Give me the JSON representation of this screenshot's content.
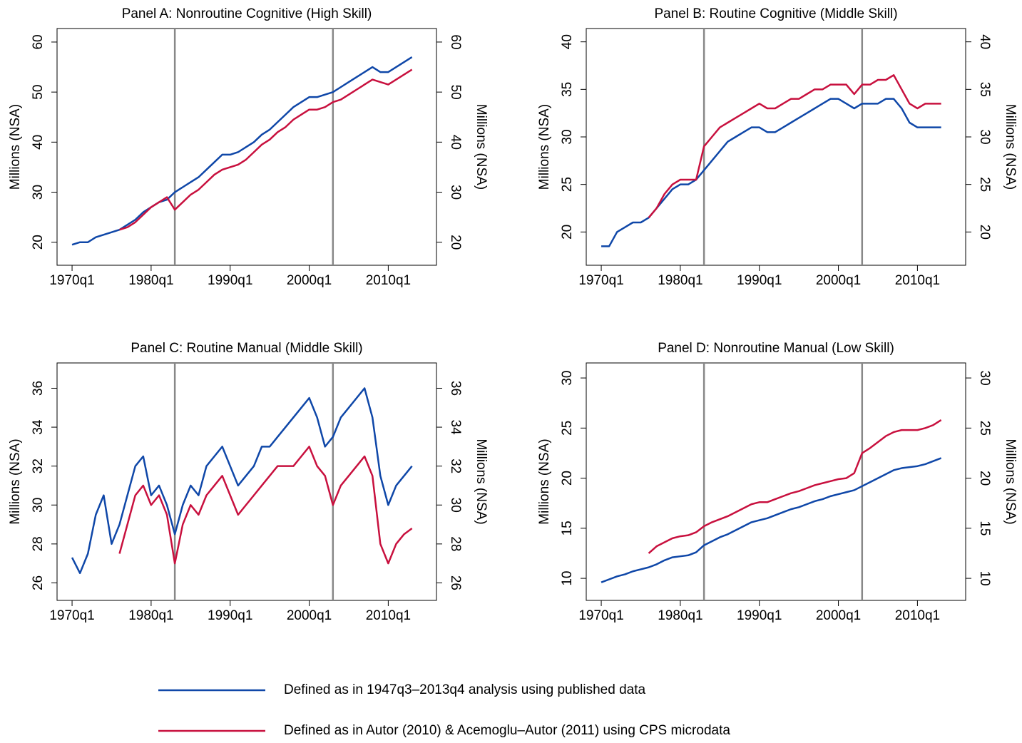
{
  "chart_data": [
    {
      "type": "line",
      "title": "Panel A: Nonroutine Cognitive (High Skill)",
      "ylabel": "Millions (NSA)",
      "y2label": "Millions (NSA)",
      "x": [
        1970,
        1971,
        1972,
        1973,
        1974,
        1975,
        1976,
        1977,
        1978,
        1979,
        1980,
        1981,
        1982,
        1983,
        1984,
        1985,
        1986,
        1987,
        1988,
        1989,
        1990,
        1991,
        1992,
        1993,
        1994,
        1995,
        1996,
        1997,
        1998,
        1999,
        2000,
        2001,
        2002,
        2003,
        2004,
        2005,
        2006,
        2007,
        2008,
        2009,
        2010,
        2011,
        2012,
        2013
      ],
      "xlim": [
        1968.1,
        2016.1
      ],
      "xticks": [
        {
          "value": 1970,
          "label": "1970q1"
        },
        {
          "value": 1980,
          "label": "1980q1"
        },
        {
          "value": 1990,
          "label": "1990q1"
        },
        {
          "value": 2000,
          "label": "2000q1"
        },
        {
          "value": 2010,
          "label": "2010q1"
        }
      ],
      "ylim": [
        15.4,
        62.7
      ],
      "yticks": [
        20,
        30,
        40,
        50,
        60
      ],
      "y2lim": [
        15.4,
        62.7
      ],
      "y2ticks": [
        20,
        30,
        40,
        50,
        60
      ],
      "vlines": [
        1983,
        2003
      ],
      "series": [
        {
          "color": "#0f47a8",
          "values": [
            19.5,
            20,
            20,
            21,
            21.5,
            22,
            22.5,
            23.5,
            24.5,
            26,
            27,
            28,
            28.5,
            30,
            31,
            32,
            33,
            34.5,
            36,
            37.5,
            37.5,
            38,
            39,
            40,
            41.5,
            42.5,
            44,
            45.5,
            47,
            48,
            49,
            49,
            49.5,
            50,
            51,
            52,
            53,
            54,
            55,
            54,
            54,
            55,
            56,
            57
          ]
        },
        {
          "color": "#c8103e",
          "values": [
            null,
            null,
            null,
            null,
            null,
            null,
            22.5,
            23,
            24,
            25.5,
            27,
            28,
            29,
            26.5,
            28,
            29.5,
            30.5,
            32,
            33.5,
            34.5,
            35,
            35.5,
            36.5,
            38,
            39.5,
            40.5,
            42,
            43,
            44.5,
            45.5,
            46.5,
            46.5,
            47,
            48,
            48.5,
            49.5,
            50.5,
            51.5,
            52.5,
            52,
            51.5,
            52.5,
            53.5,
            54.5
          ]
        }
      ]
    },
    {
      "type": "line",
      "title": "Panel B: Routine Cognitive (Middle Skill)",
      "ylabel": "Millions (NSA)",
      "y2label": "Millions (NSA)",
      "x": [
        1970,
        1971,
        1972,
        1973,
        1974,
        1975,
        1976,
        1977,
        1978,
        1979,
        1980,
        1981,
        1982,
        1983,
        1984,
        1985,
        1986,
        1987,
        1988,
        1989,
        1990,
        1991,
        1992,
        1993,
        1994,
        1995,
        1996,
        1997,
        1998,
        1999,
        2000,
        2001,
        2002,
        2003,
        2004,
        2005,
        2006,
        2007,
        2008,
        2009,
        2010,
        2011,
        2012,
        2013
      ],
      "xlim": [
        1968.1,
        2016.1
      ],
      "xticks": [
        {
          "value": 1970,
          "label": "1970q1"
        },
        {
          "value": 1980,
          "label": "1980q1"
        },
        {
          "value": 1990,
          "label": "1990q1"
        },
        {
          "value": 2000,
          "label": "2000q1"
        },
        {
          "value": 2010,
          "label": "2010q1"
        }
      ],
      "ylim": [
        16.5,
        41.4
      ],
      "yticks": [
        20,
        25,
        30,
        35,
        40
      ],
      "y2lim": [
        16.5,
        41.4
      ],
      "y2ticks": [
        20,
        25,
        30,
        35,
        40
      ],
      "vlines": [
        1983,
        2003
      ],
      "series": [
        {
          "color": "#0f47a8",
          "values": [
            18.5,
            18.5,
            20,
            20.5,
            21,
            21,
            21.5,
            22.5,
            23.5,
            24.5,
            25,
            25,
            25.5,
            26.5,
            27.5,
            28.5,
            29.5,
            30,
            30.5,
            31,
            31,
            30.5,
            30.5,
            31,
            31.5,
            32,
            32.5,
            33,
            33.5,
            34,
            34,
            33.5,
            33,
            33.5,
            33.5,
            33.5,
            34,
            34,
            33,
            31.5,
            31,
            31,
            31,
            31
          ]
        },
        {
          "color": "#c8103e",
          "values": [
            null,
            null,
            null,
            null,
            null,
            null,
            21.5,
            22.5,
            24,
            25,
            25.5,
            25.5,
            25.5,
            29,
            30,
            31,
            31.5,
            32,
            32.5,
            33,
            33.5,
            33,
            33,
            33.5,
            34,
            34,
            34.5,
            35,
            35,
            35.5,
            35.5,
            35.5,
            34.5,
            35.5,
            35.5,
            36,
            36,
            36.5,
            35,
            33.5,
            33,
            33.5,
            33.5,
            33.5
          ]
        }
      ]
    },
    {
      "type": "line",
      "title": "Panel C: Routine Manual (Middle Skill)",
      "ylabel": "Millions (NSA)",
      "y2label": "Millions (NSA)",
      "x": [
        1970,
        1971,
        1972,
        1973,
        1974,
        1975,
        1976,
        1977,
        1978,
        1979,
        1980,
        1981,
        1982,
        1983,
        1984,
        1985,
        1986,
        1987,
        1988,
        1989,
        1990,
        1991,
        1992,
        1993,
        1994,
        1995,
        1996,
        1997,
        1998,
        1999,
        2000,
        2001,
        2002,
        2003,
        2004,
        2005,
        2006,
        2007,
        2008,
        2009,
        2010,
        2011,
        2012,
        2013
      ],
      "xlim": [
        1968.1,
        2016.1
      ],
      "xticks": [
        {
          "value": 1970,
          "label": "1970q1"
        },
        {
          "value": 1980,
          "label": "1980q1"
        },
        {
          "value": 1990,
          "label": "1990q1"
        },
        {
          "value": 2000,
          "label": "2000q1"
        },
        {
          "value": 2010,
          "label": "2010q1"
        }
      ],
      "ylim": [
        25.1,
        37.3
      ],
      "yticks": [
        26,
        28,
        30,
        32,
        34,
        36
      ],
      "y2lim": [
        25.1,
        37.3
      ],
      "y2ticks": [
        26,
        28,
        30,
        32,
        34,
        36
      ],
      "vlines": [
        1983,
        2003
      ],
      "series": [
        {
          "color": "#0f47a8",
          "values": [
            27.3,
            26.5,
            27.5,
            29.5,
            30.5,
            28,
            29,
            30.5,
            32,
            32.5,
            30.5,
            31,
            30,
            28.5,
            30,
            31,
            30.5,
            32,
            32.5,
            33,
            32,
            31,
            31.5,
            32,
            33,
            33,
            33.5,
            34,
            34.5,
            35,
            35.5,
            34.5,
            33,
            33.5,
            34.5,
            35,
            35.5,
            36,
            34.5,
            31.5,
            30,
            31,
            31.5,
            32
          ]
        },
        {
          "color": "#c8103e",
          "values": [
            null,
            null,
            null,
            null,
            null,
            null,
            27.5,
            29,
            30.5,
            31,
            30,
            30.5,
            29.5,
            27,
            29,
            30,
            29.5,
            30.5,
            31,
            31.5,
            30.5,
            29.5,
            30,
            30.5,
            31,
            31.5,
            32,
            32,
            32,
            32.5,
            33,
            32,
            31.5,
            30,
            31,
            31.5,
            32,
            32.5,
            31.5,
            28,
            27,
            28,
            28.5,
            28.8
          ]
        }
      ]
    },
    {
      "type": "line",
      "title": "Panel D: Nonroutine Manual (Low Skill)",
      "ylabel": "Millions (NSA)",
      "y2label": "Millions (NSA)",
      "x": [
        1970,
        1971,
        1972,
        1973,
        1974,
        1975,
        1976,
        1977,
        1978,
        1979,
        1980,
        1981,
        1982,
        1983,
        1984,
        1985,
        1986,
        1987,
        1988,
        1989,
        1990,
        1991,
        1992,
        1993,
        1994,
        1995,
        1996,
        1997,
        1998,
        1999,
        2000,
        2001,
        2002,
        2003,
        2004,
        2005,
        2006,
        2007,
        2008,
        2009,
        2010,
        2011,
        2012,
        2013
      ],
      "xlim": [
        1968.1,
        2016.1
      ],
      "xticks": [
        {
          "value": 1970,
          "label": "1970q1"
        },
        {
          "value": 1980,
          "label": "1980q1"
        },
        {
          "value": 1990,
          "label": "1990q1"
        },
        {
          "value": 2000,
          "label": "2000q1"
        },
        {
          "value": 2010,
          "label": "2010q1"
        }
      ],
      "ylim": [
        7.8,
        31.5
      ],
      "yticks": [
        10,
        15,
        20,
        25,
        30
      ],
      "y2lim": [
        7.8,
        31.5
      ],
      "y2ticks": [
        10,
        15,
        20,
        25,
        30
      ],
      "vlines": [
        1983,
        2003
      ],
      "series": [
        {
          "color": "#0f47a8",
          "values": [
            9.6,
            9.9,
            10.2,
            10.4,
            10.7,
            10.9,
            11.1,
            11.4,
            11.8,
            12.1,
            12.2,
            12.3,
            12.6,
            13.3,
            13.7,
            14.1,
            14.4,
            14.8,
            15.2,
            15.6,
            15.8,
            16.0,
            16.3,
            16.6,
            16.9,
            17.1,
            17.4,
            17.7,
            17.9,
            18.2,
            18.4,
            18.6,
            18.8,
            19.2,
            19.6,
            20.0,
            20.4,
            20.8,
            21.0,
            21.1,
            21.2,
            21.4,
            21.7,
            22.0
          ]
        },
        {
          "color": "#c8103e",
          "values": [
            null,
            null,
            null,
            null,
            null,
            null,
            12.5,
            13.2,
            13.6,
            14.0,
            14.2,
            14.3,
            14.6,
            15.2,
            15.6,
            15.9,
            16.2,
            16.6,
            17.0,
            17.4,
            17.6,
            17.6,
            17.9,
            18.2,
            18.5,
            18.7,
            19.0,
            19.3,
            19.5,
            19.7,
            19.9,
            20.0,
            20.5,
            22.5,
            23.0,
            23.6,
            24.2,
            24.6,
            24.8,
            24.8,
            24.8,
            25.0,
            25.3,
            25.8
          ]
        }
      ]
    }
  ],
  "legend": [
    {
      "label": "Defined as in 1947q3–2013q4 analysis using published data",
      "color": "#0f47a8"
    },
    {
      "label": "Defined as in Autor (2010) & Acemoglu–Autor (2011) using CPS microdata",
      "color": "#c8103e"
    }
  ]
}
